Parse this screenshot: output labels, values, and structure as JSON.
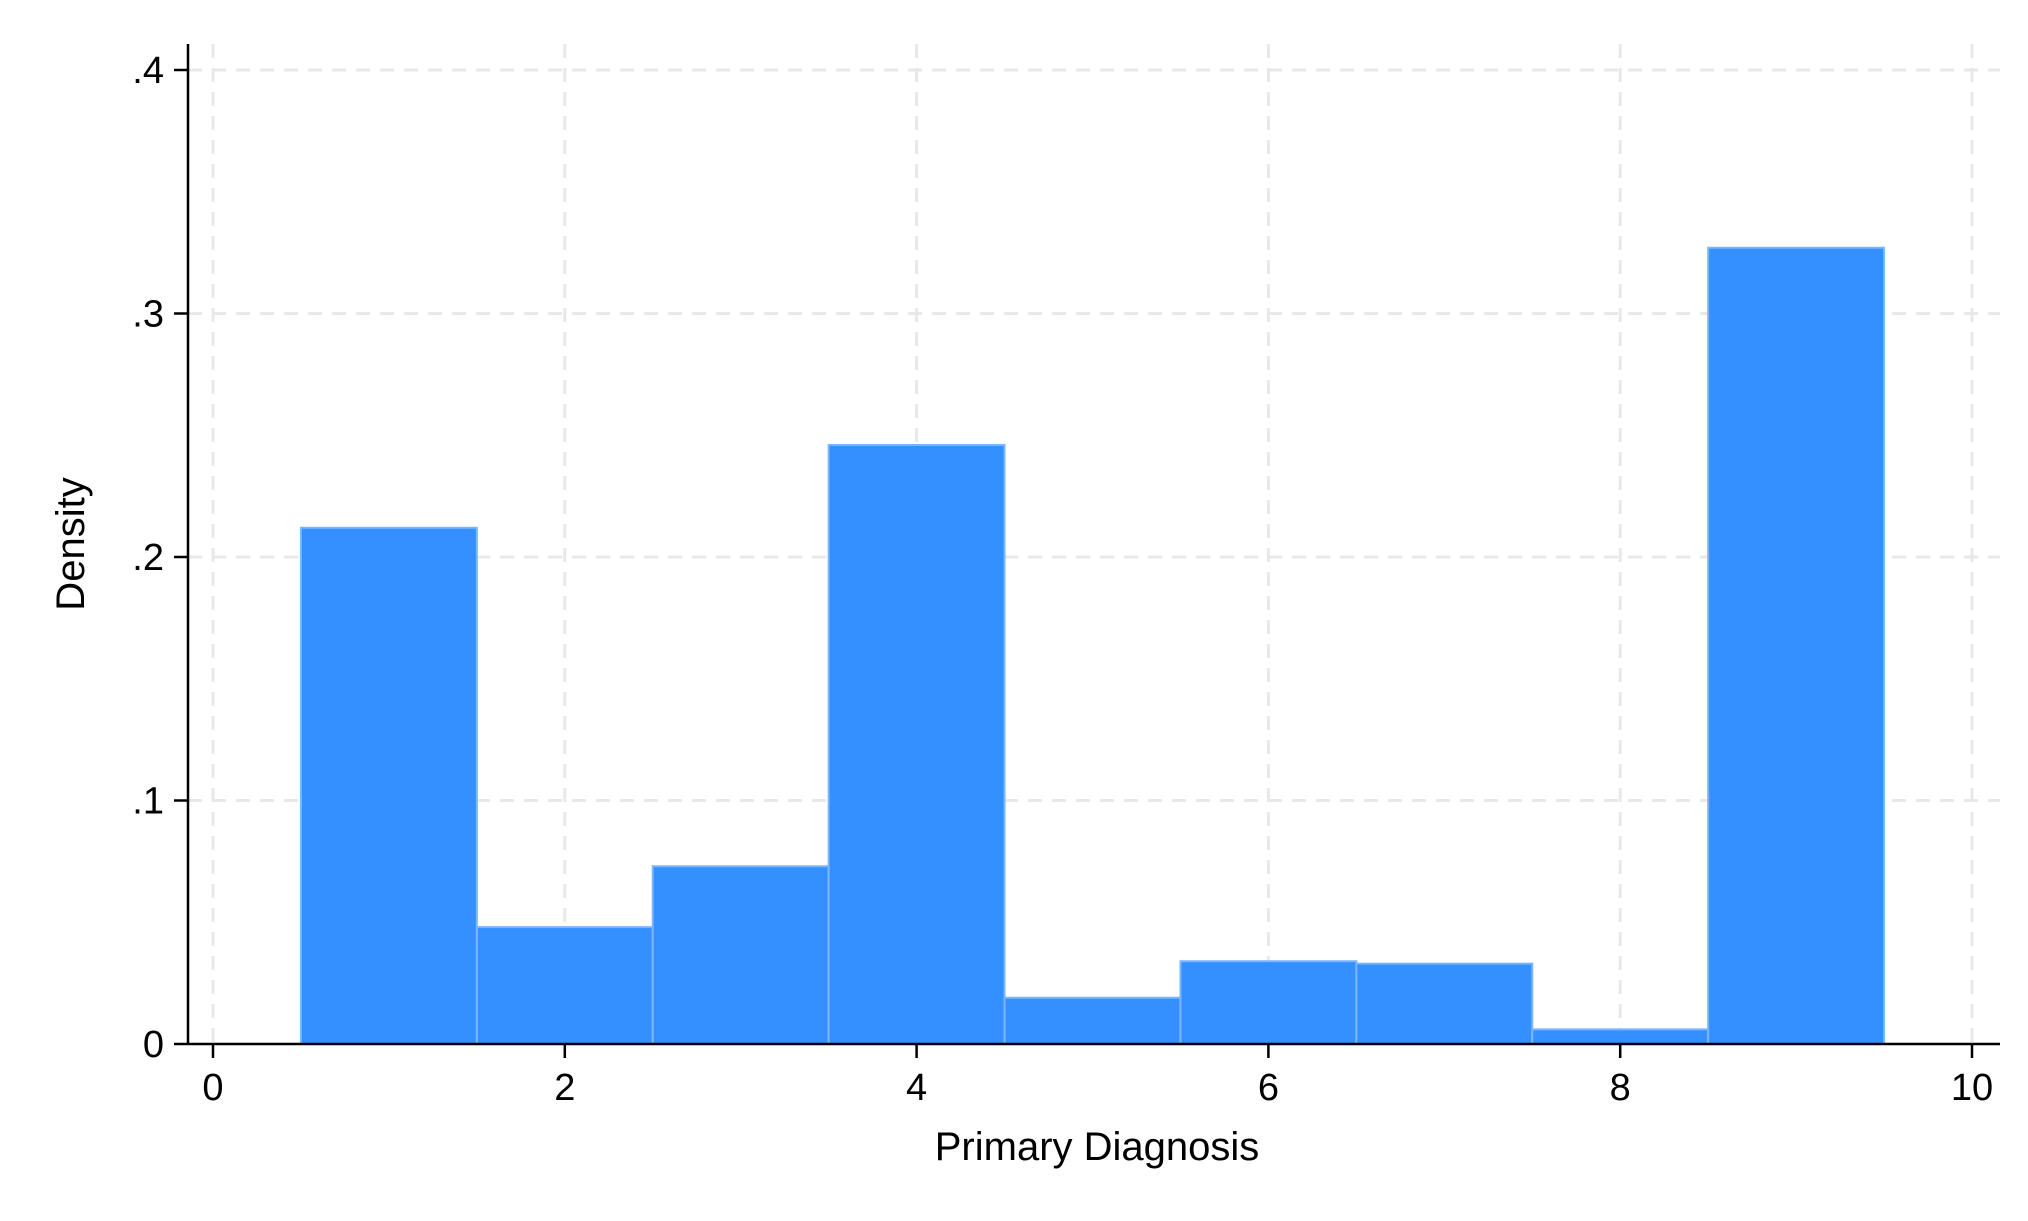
{
  "chart_data": {
    "type": "bar",
    "subtype": "histogram",
    "xlabel": "Primary Diagnosis",
    "ylabel": "Density",
    "xlim": [
      0,
      10
    ],
    "ylim": [
      0,
      0.4
    ],
    "x_ticks": [
      0,
      2,
      4,
      6,
      8,
      10
    ],
    "x_tick_labels": [
      "0",
      "2",
      "4",
      "6",
      "8",
      "10"
    ],
    "y_ticks": [
      0,
      0.1,
      0.2,
      0.3,
      0.4
    ],
    "y_tick_labels": [
      "0",
      ".1",
      ".2",
      ".3",
      ".4"
    ],
    "grid": true,
    "bin_width": 1,
    "bins": [
      {
        "x0": 0.5,
        "x1": 1.5,
        "value": 0.212
      },
      {
        "x0": 1.5,
        "x1": 2.5,
        "value": 0.048
      },
      {
        "x0": 2.5,
        "x1": 3.5,
        "value": 0.073
      },
      {
        "x0": 3.5,
        "x1": 4.5,
        "value": 0.246
      },
      {
        "x0": 4.5,
        "x1": 5.5,
        "value": 0.019
      },
      {
        "x0": 5.5,
        "x1": 6.5,
        "value": 0.034
      },
      {
        "x0": 6.5,
        "x1": 7.5,
        "value": 0.033
      },
      {
        "x0": 7.5,
        "x1": 8.5,
        "value": 0.006
      },
      {
        "x0": 8.5,
        "x1": 9.5,
        "value": 0.327
      }
    ],
    "colors": {
      "bar_fill": "#3590ff",
      "bar_edge": "#7ab6ff",
      "grid": "#e8e8e8",
      "axis": "#000000"
    }
  }
}
